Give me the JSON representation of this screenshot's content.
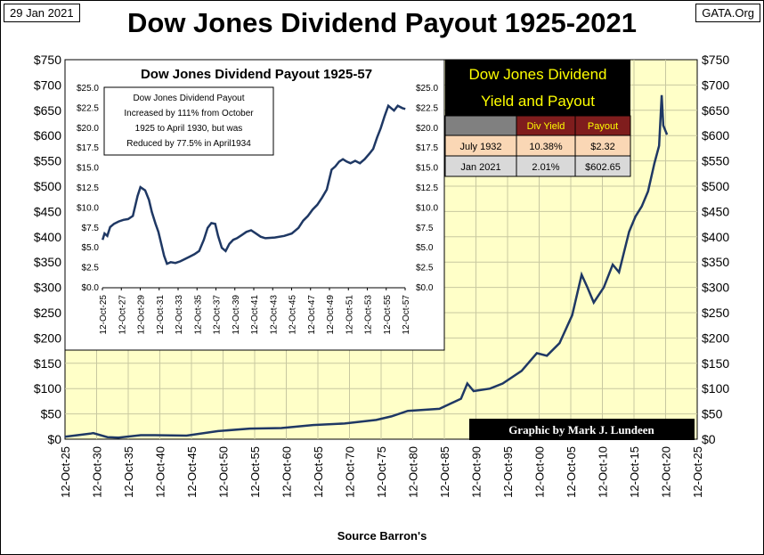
{
  "header": {
    "date": "29 Jan 2021",
    "site": "GATA.Org",
    "title": "Dow Jones Dividend Payout 1925-2021",
    "source": "Source Barron's"
  },
  "chart_data": [
    {
      "type": "line",
      "title": "Dow Jones Dividend Payout 1925-2021",
      "xlabel": "",
      "ylabel": "",
      "ylim": [
        0,
        750
      ],
      "xlim": [
        "1925-10-12",
        "2025-10-12"
      ],
      "y_ticks": [
        "$0",
        "$50",
        "$100",
        "$150",
        "$200",
        "$250",
        "$300",
        "$350",
        "$400",
        "$450",
        "$500",
        "$550",
        "$600",
        "$650",
        "$700",
        "$750"
      ],
      "x_ticks": [
        "12-Oct-25",
        "12-Oct-30",
        "12-Oct-35",
        "12-Oct-40",
        "12-Oct-45",
        "12-Oct-50",
        "12-Oct-55",
        "12-Oct-60",
        "12-Oct-65",
        "12-Oct-70",
        "12-Oct-75",
        "12-Oct-80",
        "12-Oct-85",
        "12-Oct-90",
        "12-Oct-95",
        "12-Oct-00",
        "12-Oct-05",
        "12-Oct-10",
        "12-Oct-15",
        "12-Oct-20",
        "12-Oct-25"
      ],
      "grid": true,
      "background": "#ffffc8",
      "line_color": "#1f3864",
      "series": [
        {
          "x": [
            "1925-10-12",
            "1929-10-01",
            "1930-04-01",
            "1932-07-01",
            "1934-04-01",
            "1937-10-01",
            "1940-01-01",
            "1945-01-01",
            "1950-01-01",
            "1955-01-01",
            "1960-01-01",
            "1965-01-01",
            "1970-01-01",
            "1975-01-01",
            "1977-06-01",
            "1980-01-01",
            "1985-01-01",
            "1988-06-01",
            "1989-06-01",
            "1990-06-01",
            "1993-01-01",
            "1995-01-01",
            "1998-01-01",
            "2000-06-01",
            "2002-01-01",
            "2004-01-01",
            "2006-01-01",
            "2007-07-01",
            "2008-06-01",
            "2009-06-01",
            "2011-01-01",
            "2012-06-01",
            "2013-06-01",
            "2015-01-01",
            "2016-01-01",
            "2017-01-01",
            "2018-01-01",
            "2019-01-01",
            "2019-10-01",
            "2020-03-01",
            "2020-06-01",
            "2021-01-01"
          ],
          "y": [
            5,
            11,
            12,
            4,
            3,
            8,
            8,
            7,
            16,
            21,
            22,
            28,
            31,
            38,
            45,
            56,
            60,
            80,
            110,
            95,
            100,
            110,
            135,
            170,
            165,
            190,
            245,
            325,
            300,
            270,
            300,
            345,
            330,
            410,
            440,
            460,
            490,
            545,
            580,
            680,
            620,
            602
          ]
        }
      ]
    },
    {
      "type": "line",
      "title": "Dow Jones Dividend Payout 1925-57",
      "xlabel": "",
      "ylabel": "",
      "ylim": [
        0,
        25
      ],
      "xlim": [
        "1925-10-12",
        "1957-10-12"
      ],
      "y_ticks": [
        "$0.0",
        "$2.5",
        "$5.0",
        "$7.5",
        "$10.0",
        "$12.5",
        "$15.0",
        "$17.5",
        "$20.0",
        "$22.5",
        "$25.0"
      ],
      "x_ticks": [
        "12-Oct-25",
        "12-Oct-27",
        "12-Oct-29",
        "12-Oct-31",
        "12-Oct-33",
        "12-Oct-35",
        "12-Oct-37",
        "12-Oct-39",
        "12-Oct-41",
        "12-Oct-43",
        "12-Oct-45",
        "12-Oct-47",
        "12-Oct-49",
        "12-Oct-51",
        "12-Oct-53",
        "12-Oct-55",
        "12-Oct-57"
      ],
      "grid": false,
      "annotation": "Dow Jones Dividend Payout Increased by 111% from October 1925 to April 1930, but was Reduced by 77.5% in April1934",
      "annotation_lines": [
        "Dow Jones Dividend Payout",
        "Increased by  111% from October",
        "1925 to April 1930, but was",
        "Reduced by 77.5% in April1934"
      ],
      "series": [
        {
          "x": [
            1925.8,
            1926.0,
            1926.3,
            1926.6,
            1927.0,
            1927.5,
            1928.0,
            1928.5,
            1929.0,
            1929.5,
            1929.8,
            1930.3,
            1930.7,
            1931.0,
            1931.4,
            1931.7,
            1932.0,
            1932.3,
            1932.6,
            1933.0,
            1933.5,
            1934.0,
            1934.5,
            1935.0,
            1935.5,
            1936.0,
            1936.5,
            1936.9,
            1937.3,
            1937.7,
            1938.0,
            1938.4,
            1938.8,
            1939.2,
            1939.6,
            1940.0,
            1940.5,
            1941.0,
            1941.5,
            1942.0,
            1942.5,
            1943.0,
            1944.0,
            1945.0,
            1945.8,
            1946.5,
            1947.0,
            1947.5,
            1948.0,
            1948.5,
            1949.0,
            1949.5,
            1950.0,
            1950.4,
            1950.8,
            1951.2,
            1951.6,
            1952.0,
            1952.5,
            1953.0,
            1953.5,
            1954.0,
            1954.4,
            1954.8,
            1955.2,
            1955.6,
            1956.0,
            1956.3,
            1956.6,
            1957.0,
            1957.5,
            1957.8
          ],
          "y": [
            6.0,
            6.8,
            6.5,
            7.6,
            8.0,
            8.3,
            8.5,
            8.6,
            9.0,
            11.5,
            12.6,
            12.2,
            11.0,
            9.5,
            8.0,
            7.0,
            5.5,
            4.0,
            3.0,
            3.2,
            3.1,
            3.3,
            3.6,
            3.9,
            4.2,
            4.6,
            6.0,
            7.5,
            8.1,
            8.0,
            6.5,
            5.0,
            4.6,
            5.5,
            6.0,
            6.2,
            6.6,
            7.0,
            7.2,
            6.8,
            6.4,
            6.2,
            6.3,
            6.5,
            6.8,
            7.5,
            8.4,
            9.0,
            9.8,
            10.4,
            11.3,
            12.3,
            14.8,
            15.2,
            15.8,
            16.1,
            15.8,
            15.6,
            15.9,
            15.6,
            16.1,
            16.8,
            17.4,
            18.8,
            20.0,
            21.5,
            22.8,
            22.5,
            22.2,
            22.8,
            22.5,
            22.4
          ]
        }
      ]
    }
  ],
  "yield_table": {
    "title_line1": "Dow Jones Dividend",
    "title_line2": "Yield and Payout",
    "headers": [
      "",
      "Div Yield",
      "Payout"
    ],
    "rows": [
      [
        "July 1932",
        "10.38%",
        "$2.32"
      ],
      [
        "Jan 2021",
        "2.01%",
        "$602.65"
      ]
    ]
  },
  "credit": "Graphic by Mark J. Lundeen"
}
